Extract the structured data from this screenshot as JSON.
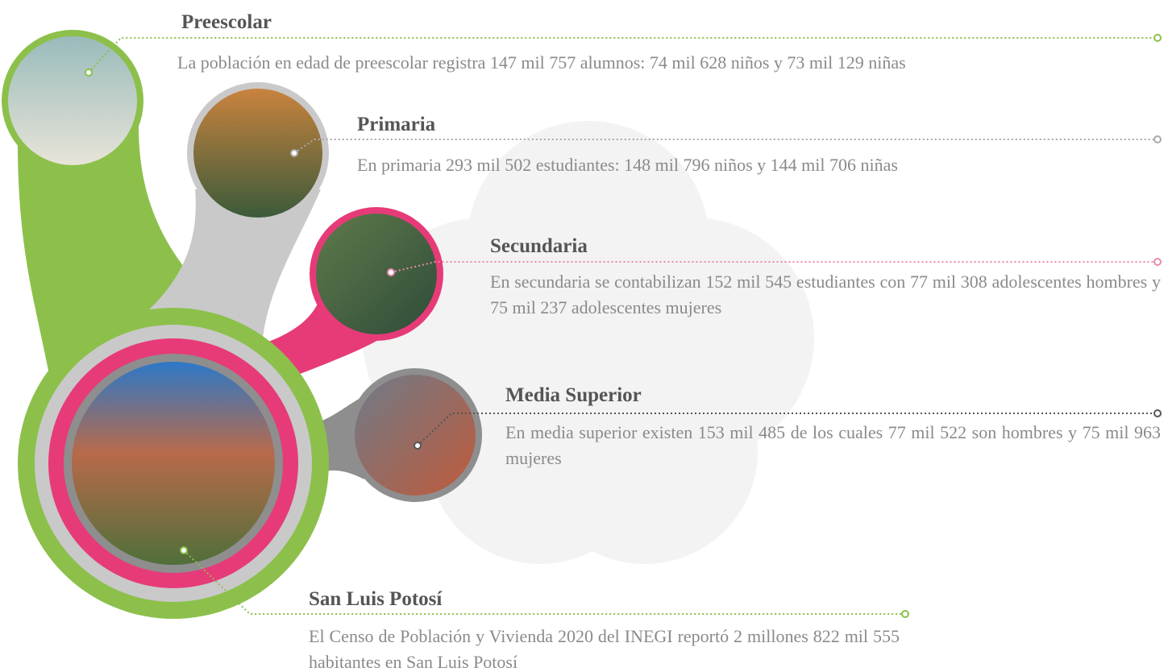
{
  "items": [
    {
      "title": "Preescolar",
      "text": "La población en edad de preescolar registra 147 mil 757 alumnos: 74 mil 628 niños y 73 mil 129 niñas"
    },
    {
      "title": "Primaria",
      "text": "En primaria 293 mil 502 estudiantes: 148 mil 796 niños y 144 mil 706 niñas"
    },
    {
      "title": "Secundaria",
      "text": "En secundaria se contabilizan 152 mil 545 estudiantes con 77 mil 308 adolescentes hombres y 75 mil 237 adolescentes mujeres"
    },
    {
      "title": "Media Superior",
      "text": "En media superior existen 153 mil 485 de los cuales 77 mil 522 son hombres y 75 mil 963 mujeres"
    },
    {
      "title": "San Luis Potosí",
      "text": "El Censo de Población y Vivienda 2020 del INEGI reportó 2 millones 822 mil 555 habitantes en San Luis Potosí"
    }
  ]
}
